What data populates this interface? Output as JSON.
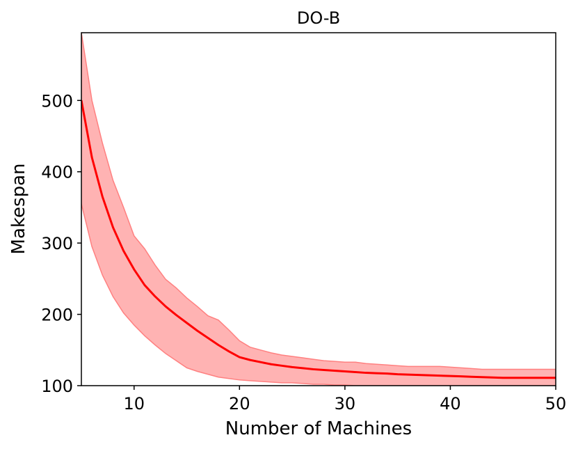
{
  "chart_data": {
    "type": "line",
    "title": "DO-B",
    "xlabel": "Number of Machines",
    "ylabel": "Makespan",
    "xlim": [
      5,
      50
    ],
    "ylim": [
      100,
      595
    ],
    "xticks": [
      10,
      20,
      30,
      40,
      50
    ],
    "yticks": [
      100,
      200,
      300,
      400,
      500
    ],
    "grid": false,
    "legend": "none",
    "colors": {
      "line": "#ff0000",
      "band_fill": "#ff9999",
      "band_edge": "#ff8080"
    },
    "series": [
      {
        "x": [
          5,
          6,
          7,
          8,
          9,
          10,
          11,
          12,
          13,
          14,
          15,
          16,
          17,
          18,
          19,
          20,
          21,
          22,
          23,
          24,
          25,
          26,
          27,
          28,
          29,
          30,
          31,
          32,
          33,
          34,
          35,
          36,
          37,
          38,
          39,
          40,
          41,
          42,
          43,
          44,
          45,
          46,
          47,
          48,
          49,
          50
        ],
        "values": [
          500,
          420,
          365,
          322,
          289,
          263,
          241,
          225,
          211,
          199,
          188,
          177,
          167,
          157,
          148,
          140,
          136,
          133,
          130,
          128,
          126,
          124.5,
          123,
          122,
          121,
          120,
          119,
          118,
          117.5,
          117,
          116,
          115.5,
          115,
          114.5,
          114,
          113.5,
          113,
          112.5,
          112,
          111.5,
          111,
          111,
          111,
          111,
          111,
          111
        ],
        "upper": [
          595,
          500,
          440,
          388,
          350,
          310,
          292,
          269,
          249,
          237,
          223,
          211,
          198,
          192,
          178,
          163,
          154,
          150,
          146,
          143,
          141,
          139,
          137,
          135,
          134,
          133,
          133,
          131,
          130,
          129,
          128,
          127,
          127,
          127,
          127,
          126,
          125,
          124,
          123,
          123,
          123,
          123,
          123,
          123,
          123,
          123
        ],
        "lower": [
          355,
          295,
          255,
          225,
          202,
          185,
          170,
          157,
          145,
          135,
          125,
          120,
          116,
          112,
          110,
          108,
          107,
          106,
          105,
          104,
          104,
          103,
          102,
          102,
          101,
          101,
          100,
          100,
          100,
          100,
          100,
          100,
          100,
          100,
          100,
          100,
          100,
          100,
          100,
          100,
          100,
          100,
          100,
          100,
          100,
          100
        ]
      }
    ]
  }
}
